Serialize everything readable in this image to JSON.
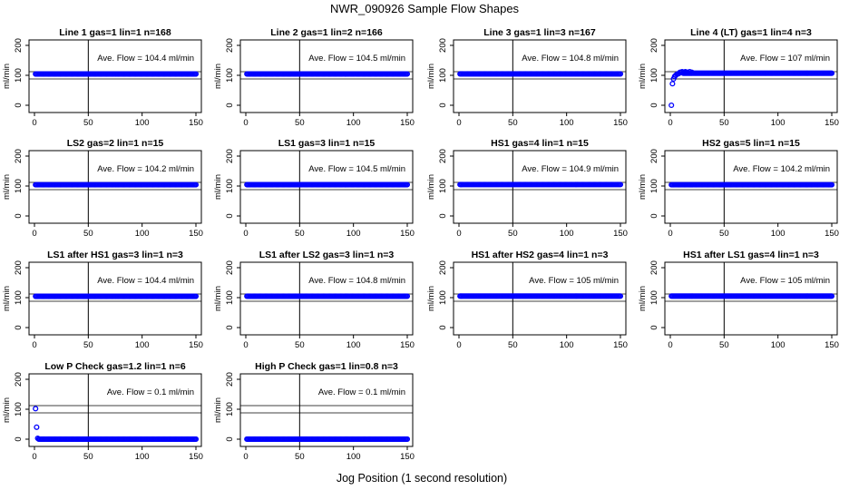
{
  "figure": {
    "title": "NWR_090926  Sample Flow Shapes",
    "xlabel": "Jog Position (1 second resolution)",
    "point_color": "#0000ff"
  },
  "chart_data": [
    {
      "type": "scatter",
      "title": "Line 1 gas=1 lin=1 n=168",
      "ylabel": "ml/min",
      "xlim": [
        0,
        150
      ],
      "ylim": [
        0,
        200
      ],
      "xticks": [
        0,
        50,
        100,
        150
      ],
      "yticks": [
        0,
        100,
        200
      ],
      "vline": 50,
      "annotation": "Ave. Flow =  104.4  ml/min",
      "ave_flow": 104.4,
      "series": [
        {
          "x_range": [
            1,
            150
          ],
          "y": 104.4
        }
      ],
      "extra_points": []
    },
    {
      "type": "scatter",
      "title": "Line 2 gas=1 lin=2 n=166",
      "ylabel": "ml/min",
      "xlim": [
        0,
        150
      ],
      "ylim": [
        0,
        200
      ],
      "xticks": [
        0,
        50,
        100,
        150
      ],
      "yticks": [
        0,
        100,
        200
      ],
      "vline": 50,
      "annotation": "Ave. Flow =  104.5  ml/min",
      "ave_flow": 104.5,
      "series": [
        {
          "x_range": [
            1,
            150
          ],
          "y": 104.5
        }
      ],
      "extra_points": []
    },
    {
      "type": "scatter",
      "title": "Line 3 gas=1 lin=3 n=167",
      "ylabel": "ml/min",
      "xlim": [
        0,
        150
      ],
      "ylim": [
        0,
        200
      ],
      "xticks": [
        0,
        50,
        100,
        150
      ],
      "yticks": [
        0,
        100,
        200
      ],
      "vline": 50,
      "annotation": "Ave. Flow =  104.8  ml/min",
      "ave_flow": 104.8,
      "series": [
        {
          "x_range": [
            1,
            150
          ],
          "y": 104.8
        }
      ],
      "extra_points": []
    },
    {
      "type": "scatter",
      "title": "Line 4 (LT) gas=1 lin=4 n=3",
      "ylabel": "ml/min",
      "xlim": [
        0,
        150
      ],
      "ylim": [
        0,
        200
      ],
      "xticks": [
        0,
        50,
        100,
        150
      ],
      "yticks": [
        0,
        100,
        200
      ],
      "vline": 50,
      "annotation": "Ave. Flow =  107  ml/min",
      "ave_flow": 107,
      "series": [
        {
          "x_range": [
            12,
            150
          ],
          "y": 107
        }
      ],
      "extra_points": [
        [
          1,
          0
        ],
        [
          2,
          72
        ],
        [
          3,
          88
        ],
        [
          4,
          96
        ],
        [
          5,
          100
        ],
        [
          6,
          103
        ],
        [
          7,
          105
        ],
        [
          8,
          106
        ],
        [
          9,
          110
        ],
        [
          10,
          110
        ],
        [
          11,
          112
        ],
        [
          13,
          110
        ],
        [
          14,
          112
        ],
        [
          16,
          110
        ],
        [
          18,
          112
        ],
        [
          20,
          110
        ]
      ]
    },
    {
      "type": "scatter",
      "title": "LS2 gas=2 lin=1 n=15",
      "ylabel": "ml/min",
      "xlim": [
        0,
        150
      ],
      "ylim": [
        0,
        200
      ],
      "xticks": [
        0,
        50,
        100,
        150
      ],
      "yticks": [
        0,
        100,
        200
      ],
      "vline": 50,
      "annotation": "Ave. Flow =  104.2  ml/min",
      "ave_flow": 104.2,
      "series": [
        {
          "x_range": [
            1,
            150
          ],
          "y": 104.2
        }
      ],
      "extra_points": []
    },
    {
      "type": "scatter",
      "title": "LS1 gas=3 lin=1 n=15",
      "ylabel": "ml/min",
      "xlim": [
        0,
        150
      ],
      "ylim": [
        0,
        200
      ],
      "xticks": [
        0,
        50,
        100,
        150
      ],
      "yticks": [
        0,
        100,
        200
      ],
      "vline": 50,
      "annotation": "Ave. Flow =  104.5  ml/min",
      "ave_flow": 104.5,
      "series": [
        {
          "x_range": [
            1,
            150
          ],
          "y": 104.5
        }
      ],
      "extra_points": []
    },
    {
      "type": "scatter",
      "title": "HS1 gas=4 lin=1 n=15",
      "ylabel": "ml/min",
      "xlim": [
        0,
        150
      ],
      "ylim": [
        0,
        200
      ],
      "xticks": [
        0,
        50,
        100,
        150
      ],
      "yticks": [
        0,
        100,
        200
      ],
      "vline": 50,
      "annotation": "Ave. Flow =  104.9  ml/min",
      "ave_flow": 104.9,
      "series": [
        {
          "x_range": [
            1,
            150
          ],
          "y": 104.9
        }
      ],
      "extra_points": []
    },
    {
      "type": "scatter",
      "title": "HS2 gas=5 lin=1 n=15",
      "ylabel": "ml/min",
      "xlim": [
        0,
        150
      ],
      "ylim": [
        0,
        200
      ],
      "xticks": [
        0,
        50,
        100,
        150
      ],
      "yticks": [
        0,
        100,
        200
      ],
      "vline": 50,
      "annotation": "Ave. Flow =  104.2  ml/min",
      "ave_flow": 104.2,
      "series": [
        {
          "x_range": [
            1,
            150
          ],
          "y": 104.2
        }
      ],
      "extra_points": []
    },
    {
      "type": "scatter",
      "title": "LS1 after HS1 gas=3 lin=1 n=3",
      "ylabel": "ml/min",
      "xlim": [
        0,
        150
      ],
      "ylim": [
        0,
        200
      ],
      "xticks": [
        0,
        50,
        100,
        150
      ],
      "yticks": [
        0,
        100,
        200
      ],
      "vline": 50,
      "annotation": "Ave. Flow =  104.4  ml/min",
      "ave_flow": 104.4,
      "series": [
        {
          "x_range": [
            1,
            150
          ],
          "y": 104.4
        }
      ],
      "extra_points": []
    },
    {
      "type": "scatter",
      "title": "LS1 after LS2 gas=3 lin=1 n=3",
      "ylabel": "ml/min",
      "xlim": [
        0,
        150
      ],
      "ylim": [
        0,
        200
      ],
      "xticks": [
        0,
        50,
        100,
        150
      ],
      "yticks": [
        0,
        100,
        200
      ],
      "vline": 50,
      "annotation": "Ave. Flow =  104.8  ml/min",
      "ave_flow": 104.8,
      "series": [
        {
          "x_range": [
            1,
            150
          ],
          "y": 104.8
        }
      ],
      "extra_points": []
    },
    {
      "type": "scatter",
      "title": "HS1 after HS2 gas=4 lin=1 n=3",
      "ylabel": "ml/min",
      "xlim": [
        0,
        150
      ],
      "ylim": [
        0,
        200
      ],
      "xticks": [
        0,
        50,
        100,
        150
      ],
      "yticks": [
        0,
        100,
        200
      ],
      "vline": 50,
      "annotation": "Ave. Flow =  105  ml/min",
      "ave_flow": 105,
      "series": [
        {
          "x_range": [
            1,
            150
          ],
          "y": 105
        }
      ],
      "extra_points": []
    },
    {
      "type": "scatter",
      "title": "HS1 after LS1 gas=4 lin=1 n=3",
      "ylabel": "ml/min",
      "xlim": [
        0,
        150
      ],
      "ylim": [
        0,
        200
      ],
      "xticks": [
        0,
        50,
        100,
        150
      ],
      "yticks": [
        0,
        100,
        200
      ],
      "vline": 50,
      "annotation": "Ave. Flow =  105  ml/min",
      "ave_flow": 105,
      "series": [
        {
          "x_range": [
            1,
            150
          ],
          "y": 105
        }
      ],
      "extra_points": []
    },
    {
      "type": "scatter",
      "title": "Low P Check gas=1.2 lin=1 n=6",
      "ylabel": "ml/min",
      "xlim": [
        0,
        150
      ],
      "ylim": [
        0,
        200
      ],
      "xticks": [
        0,
        50,
        100,
        150
      ],
      "yticks": [
        0,
        100,
        200
      ],
      "vline": 50,
      "annotation": "Ave. Flow =  0.1  ml/min",
      "ave_flow": 0.1,
      "series": [
        {
          "x_range": [
            4,
            150
          ],
          "y": 0.1
        }
      ],
      "extra_points": [
        [
          1,
          102
        ],
        [
          2,
          40
        ],
        [
          3,
          3
        ]
      ]
    },
    {
      "type": "scatter",
      "title": "High P Check gas=1 lin=0.8 n=3",
      "ylabel": "ml/min",
      "xlim": [
        0,
        150
      ],
      "ylim": [
        0,
        200
      ],
      "xticks": [
        0,
        50,
        100,
        150
      ],
      "yticks": [
        0,
        100,
        200
      ],
      "vline": 50,
      "annotation": "Ave. Flow =  0.1  ml/min",
      "ave_flow": 0.1,
      "series": [
        {
          "x_range": [
            1,
            150
          ],
          "y": 0.1
        }
      ],
      "extra_points": []
    }
  ]
}
